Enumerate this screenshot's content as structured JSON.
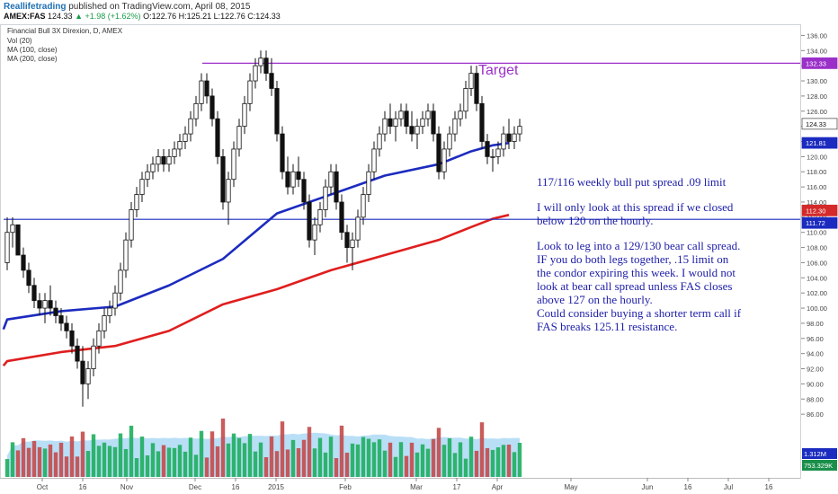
{
  "header": {
    "brand": "Reallifetrading",
    "published": "published on TradingView.com, April 08, 2015"
  },
  "ticker": {
    "symbol": "AMEX:FAS",
    "last": "124.33",
    "change": "+1.98 (+1.62%)",
    "open": "O:122.76",
    "high": "H:125.21",
    "low": "L:122.76",
    "close": "C:124.33"
  },
  "chart_data": {
    "type": "candlestick",
    "title": "Financial Bull 3X Direxion, D, AMEX",
    "indicators": [
      "Vol (20)",
      "MA (100, close)",
      "MA (200, close)"
    ],
    "ylim": [
      84,
      137
    ],
    "y_ticks": [
      86,
      88,
      90,
      92,
      94,
      96,
      98,
      100,
      102,
      104,
      106,
      108,
      110,
      112,
      114,
      116,
      118,
      120,
      122,
      124,
      126,
      128,
      130,
      132,
      134,
      136
    ],
    "x_ticks": [
      "Oct",
      "16",
      "Nov",
      "Dec",
      "16",
      "2015",
      "Feb",
      "Mar",
      "17",
      "Apr",
      "May",
      "Jun",
      "16",
      "Jul",
      "16"
    ],
    "price_badges": [
      {
        "value": "132.33",
        "color": "#9b30c9"
      },
      {
        "value": "124.33",
        "color": "#ffffff"
      },
      {
        "value": "121.81",
        "color": "#1c2bbf"
      },
      {
        "value": "112.30",
        "color": "#d42a2a"
      },
      {
        "value": "111.72",
        "color": "#1c2bbf"
      }
    ],
    "volume_badges": [
      {
        "value": "1.312M",
        "color": "#1c2bbf"
      },
      {
        "value": "753.329K",
        "color": "#1a8f4a"
      }
    ],
    "horizontal_lines": [
      {
        "value": 132.33,
        "color": "#9b30c9",
        "label": "Target"
      },
      {
        "value": 111.72,
        "color": "#1c2bbf"
      }
    ],
    "candles": [
      {
        "o": 106,
        "h": 112,
        "l": 105,
        "c": 110
      },
      {
        "o": 110,
        "h": 112,
        "l": 108,
        "c": 111
      },
      {
        "o": 111,
        "h": 111,
        "l": 107,
        "c": 107
      },
      {
        "o": 107,
        "h": 108,
        "l": 104,
        "c": 105
      },
      {
        "o": 105,
        "h": 106,
        "l": 102,
        "c": 103
      },
      {
        "o": 103,
        "h": 104,
        "l": 100,
        "c": 101
      },
      {
        "o": 101,
        "h": 102,
        "l": 99,
        "c": 100
      },
      {
        "o": 100,
        "h": 102,
        "l": 98,
        "c": 101
      },
      {
        "o": 101,
        "h": 103,
        "l": 99,
        "c": 100
      },
      {
        "o": 100,
        "h": 101,
        "l": 98,
        "c": 99
      },
      {
        "o": 99,
        "h": 100,
        "l": 97,
        "c": 98
      },
      {
        "o": 98,
        "h": 99,
        "l": 96,
        "c": 97
      },
      {
        "o": 97,
        "h": 98,
        "l": 94,
        "c": 95
      },
      {
        "o": 95,
        "h": 96,
        "l": 92,
        "c": 93
      },
      {
        "o": 93,
        "h": 95,
        "l": 87,
        "c": 90
      },
      {
        "o": 90,
        "h": 93,
        "l": 88,
        "c": 92
      },
      {
        "o": 92,
        "h": 96,
        "l": 91,
        "c": 95
      },
      {
        "o": 95,
        "h": 98,
        "l": 94,
        "c": 97
      },
      {
        "o": 97,
        "h": 100,
        "l": 96,
        "c": 99
      },
      {
        "o": 99,
        "h": 101,
        "l": 98,
        "c": 100
      },
      {
        "o": 100,
        "h": 103,
        "l": 99,
        "c": 102
      },
      {
        "o": 102,
        "h": 106,
        "l": 101,
        "c": 105
      },
      {
        "o": 105,
        "h": 110,
        "l": 104,
        "c": 109
      },
      {
        "o": 109,
        "h": 114,
        "l": 108,
        "c": 113
      },
      {
        "o": 113,
        "h": 116,
        "l": 112,
        "c": 115
      },
      {
        "o": 115,
        "h": 118,
        "l": 114,
        "c": 117
      },
      {
        "o": 117,
        "h": 119,
        "l": 116,
        "c": 118
      },
      {
        "o": 118,
        "h": 120,
        "l": 117,
        "c": 119
      },
      {
        "o": 119,
        "h": 121,
        "l": 118,
        "c": 120
      },
      {
        "o": 120,
        "h": 121,
        "l": 118,
        "c": 119
      },
      {
        "o": 119,
        "h": 121,
        "l": 118,
        "c": 120
      },
      {
        "o": 120,
        "h": 122,
        "l": 119,
        "c": 121
      },
      {
        "o": 121,
        "h": 123,
        "l": 120,
        "c": 122
      },
      {
        "o": 122,
        "h": 124,
        "l": 121,
        "c": 123
      },
      {
        "o": 123,
        "h": 126,
        "l": 122,
        "c": 125
      },
      {
        "o": 125,
        "h": 128,
        "l": 124,
        "c": 127
      },
      {
        "o": 127,
        "h": 131,
        "l": 126,
        "c": 130
      },
      {
        "o": 130,
        "h": 131,
        "l": 127,
        "c": 128
      },
      {
        "o": 128,
        "h": 129,
        "l": 124,
        "c": 125
      },
      {
        "o": 125,
        "h": 126,
        "l": 119,
        "c": 120
      },
      {
        "o": 120,
        "h": 121,
        "l": 113,
        "c": 114
      },
      {
        "o": 114,
        "h": 118,
        "l": 111,
        "c": 117
      },
      {
        "o": 117,
        "h": 122,
        "l": 116,
        "c": 121
      },
      {
        "o": 121,
        "h": 125,
        "l": 120,
        "c": 124
      },
      {
        "o": 124,
        "h": 128,
        "l": 123,
        "c": 127
      },
      {
        "o": 127,
        "h": 131,
        "l": 126,
        "c": 130
      },
      {
        "o": 130,
        "h": 133,
        "l": 129,
        "c": 132
      },
      {
        "o": 132,
        "h": 134,
        "l": 131,
        "c": 133
      },
      {
        "o": 133,
        "h": 134,
        "l": 130,
        "c": 131
      },
      {
        "o": 131,
        "h": 133,
        "l": 128,
        "c": 129
      },
      {
        "o": 129,
        "h": 130,
        "l": 122,
        "c": 123
      },
      {
        "o": 123,
        "h": 124,
        "l": 117,
        "c": 118
      },
      {
        "o": 118,
        "h": 120,
        "l": 115,
        "c": 116
      },
      {
        "o": 116,
        "h": 119,
        "l": 115,
        "c": 118
      },
      {
        "o": 118,
        "h": 120,
        "l": 116,
        "c": 117
      },
      {
        "o": 117,
        "h": 118,
        "l": 113,
        "c": 114
      },
      {
        "o": 114,
        "h": 115,
        "l": 108,
        "c": 109
      },
      {
        "o": 109,
        "h": 112,
        "l": 107,
        "c": 111
      },
      {
        "o": 111,
        "h": 114,
        "l": 110,
        "c": 113
      },
      {
        "o": 113,
        "h": 117,
        "l": 112,
        "c": 116
      },
      {
        "o": 116,
        "h": 119,
        "l": 115,
        "c": 118
      },
      {
        "o": 118,
        "h": 119,
        "l": 113,
        "c": 114
      },
      {
        "o": 114,
        "h": 115,
        "l": 109,
        "c": 110
      },
      {
        "o": 110,
        "h": 111,
        "l": 106,
        "c": 108
      },
      {
        "o": 108,
        "h": 110,
        "l": 105,
        "c": 109
      },
      {
        "o": 109,
        "h": 113,
        "l": 108,
        "c": 112
      },
      {
        "o": 112,
        "h": 116,
        "l": 111,
        "c": 115
      },
      {
        "o": 115,
        "h": 119,
        "l": 114,
        "c": 118
      },
      {
        "o": 118,
        "h": 122,
        "l": 117,
        "c": 121
      },
      {
        "o": 121,
        "h": 124,
        "l": 120,
        "c": 123
      },
      {
        "o": 123,
        "h": 126,
        "l": 122,
        "c": 125
      },
      {
        "o": 125,
        "h": 127,
        "l": 123,
        "c": 124
      },
      {
        "o": 124,
        "h": 126,
        "l": 122,
        "c": 125
      },
      {
        "o": 125,
        "h": 127,
        "l": 124,
        "c": 126
      },
      {
        "o": 126,
        "h": 127,
        "l": 123,
        "c": 124
      },
      {
        "o": 124,
        "h": 126,
        "l": 122,
        "c": 123
      },
      {
        "o": 123,
        "h": 125,
        "l": 121,
        "c": 124
      },
      {
        "o": 124,
        "h": 126,
        "l": 123,
        "c": 125
      },
      {
        "o": 125,
        "h": 127,
        "l": 124,
        "c": 126
      },
      {
        "o": 126,
        "h": 127,
        "l": 122,
        "c": 123
      },
      {
        "o": 123,
        "h": 124,
        "l": 117,
        "c": 118
      },
      {
        "o": 118,
        "h": 122,
        "l": 117,
        "c": 121
      },
      {
        "o": 121,
        "h": 124,
        "l": 120,
        "c": 123
      },
      {
        "o": 123,
        "h": 126,
        "l": 122,
        "c": 125
      },
      {
        "o": 125,
        "h": 127,
        "l": 124,
        "c": 126
      },
      {
        "o": 126,
        "h": 130,
        "l": 125,
        "c": 129
      },
      {
        "o": 129,
        "h": 132,
        "l": 128,
        "c": 131
      },
      {
        "o": 131,
        "h": 132,
        "l": 126,
        "c": 127
      },
      {
        "o": 127,
        "h": 128,
        "l": 121,
        "c": 122
      },
      {
        "o": 122,
        "h": 123,
        "l": 119,
        "c": 120
      },
      {
        "o": 120,
        "h": 121,
        "l": 118,
        "c": 120
      },
      {
        "o": 120,
        "h": 122,
        "l": 119,
        "c": 121
      },
      {
        "o": 121,
        "h": 124,
        "l": 120,
        "c": 123
      },
      {
        "o": 123,
        "h": 125,
        "l": 121,
        "c": 122
      },
      {
        "o": 122,
        "h": 124,
        "l": 121,
        "c": 123
      },
      {
        "o": 123,
        "h": 125,
        "l": 122,
        "c": 124
      }
    ],
    "ma100": [
      [
        0,
        98.5
      ],
      [
        10,
        99.6
      ],
      [
        20,
        100.2
      ],
      [
        30,
        103
      ],
      [
        40,
        106.5
      ],
      [
        50,
        112.5
      ],
      [
        60,
        115
      ],
      [
        70,
        117.5
      ],
      [
        80,
        119
      ],
      [
        86,
        120.7
      ],
      [
        90,
        121.5
      ],
      [
        93,
        121.8
      ]
    ],
    "ma200": [
      [
        0,
        93
      ],
      [
        10,
        94.2
      ],
      [
        20,
        95
      ],
      [
        30,
        97
      ],
      [
        40,
        100.5
      ],
      [
        50,
        102.5
      ],
      [
        60,
        105
      ],
      [
        70,
        107
      ],
      [
        80,
        109
      ],
      [
        86,
        110.7
      ],
      [
        90,
        111.8
      ],
      [
        93,
        112.3
      ]
    ],
    "target_label": "Target",
    "annotations": {
      "line1": "117/116 weekly bull put spread .09 limit",
      "para2": [
        "I will only look at this spread if we closed",
        "below 120 on the hourly."
      ],
      "para3": [
        "Look to leg into a 129/130 bear call spread.",
        "IF you do both legs together, .15 limit on",
        "the condor expiring this week. I would not",
        "look at bear call spread unless FAS closes",
        "above 127 on the hourly.",
        "Could consider buying a shorter term call if",
        "FAS breaks 125.11 resistance."
      ]
    },
    "colors": {
      "up_candle": "#ffffff",
      "down_candle": "#111111",
      "ma100": "#1c2bbf",
      "ma200": "#e01e1e",
      "vol_up": "#1fae5e",
      "vol_down": "#c44a4a",
      "vol_ma": "#a8d7f5"
    }
  }
}
